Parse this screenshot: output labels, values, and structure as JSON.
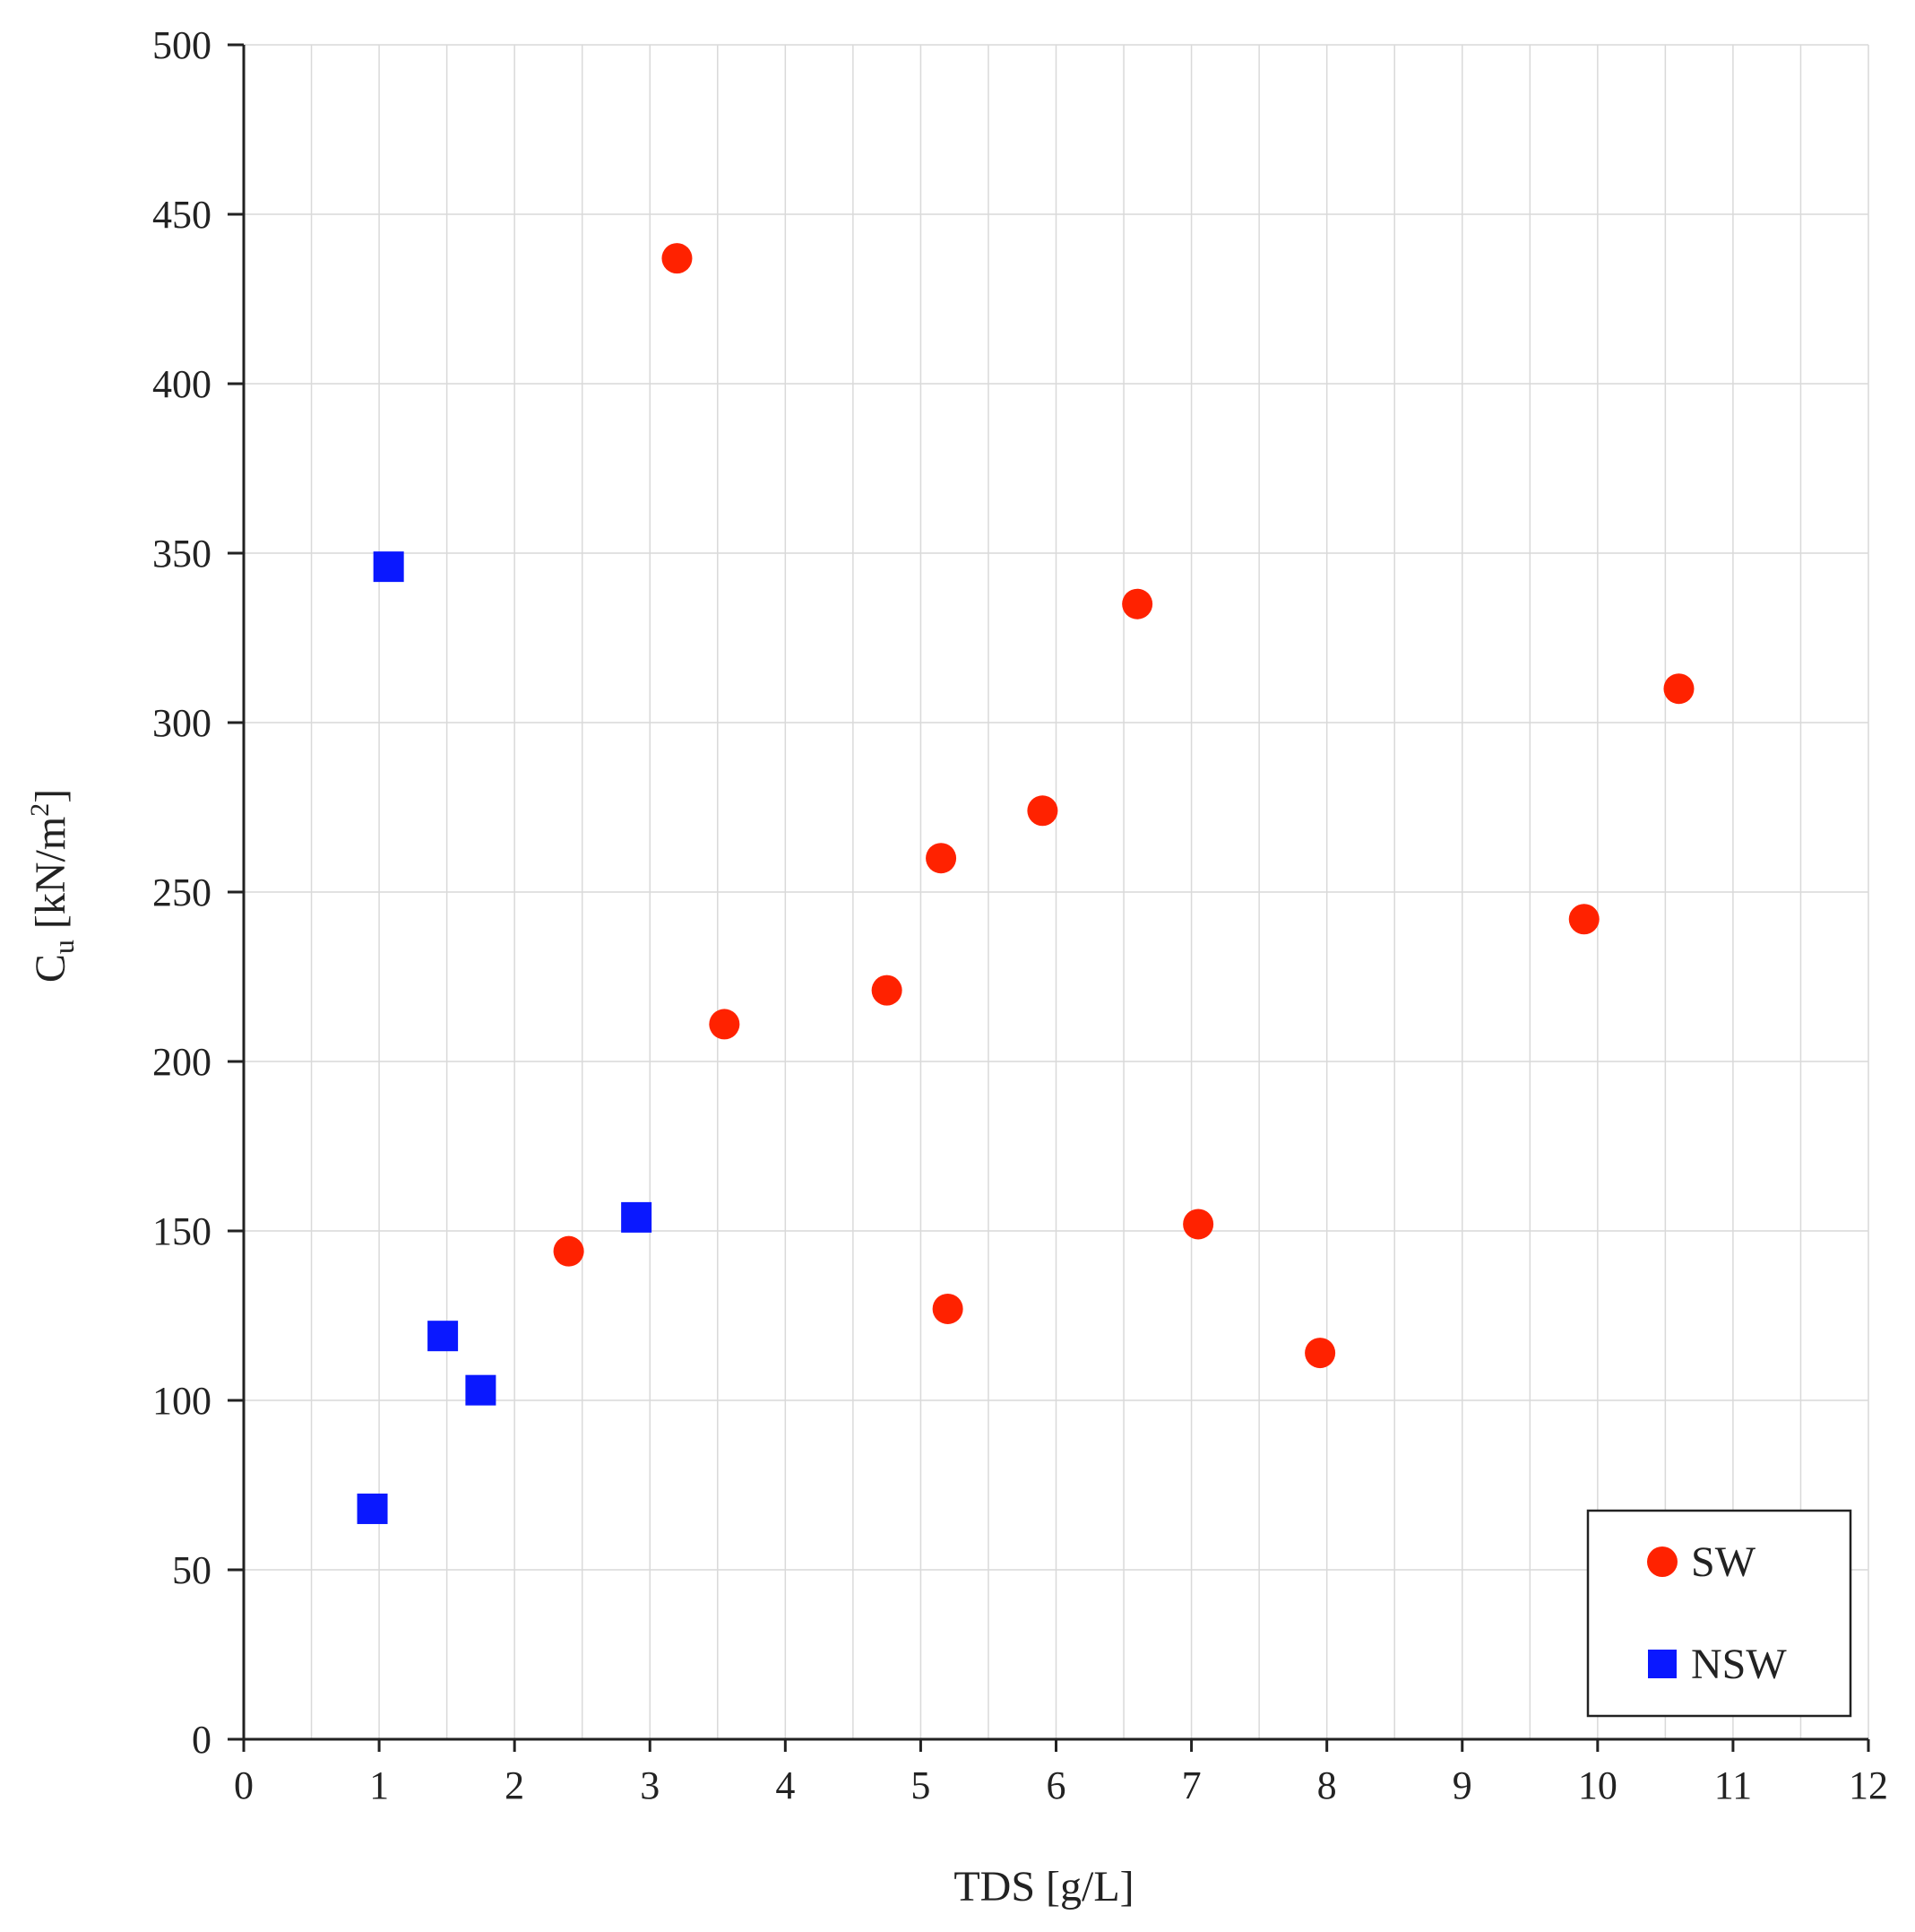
{
  "chart_data": {
    "type": "scatter",
    "title": "",
    "xlabel": "TDS [g/L]",
    "ylabel": {
      "main": "C",
      "subscript": "u",
      "unit_prefix": " [kN/m",
      "superscript": "2",
      "unit_suffix": "]"
    },
    "xlim": [
      0,
      12
    ],
    "ylim": [
      0,
      500
    ],
    "x_ticks": [
      0,
      1,
      2,
      3,
      4,
      5,
      6,
      7,
      8,
      9,
      10,
      11,
      12
    ],
    "y_ticks": [
      0,
      50,
      100,
      150,
      200,
      250,
      300,
      350,
      400,
      450,
      500
    ],
    "grid": true,
    "legend_position": "bottom-right",
    "series": [
      {
        "name": "SW",
        "marker": "circle",
        "color": "#ff2200",
        "points": [
          {
            "x": 3.2,
            "y": 437
          },
          {
            "x": 6.6,
            "y": 335
          },
          {
            "x": 10.6,
            "y": 310
          },
          {
            "x": 5.9,
            "y": 274
          },
          {
            "x": 5.15,
            "y": 260
          },
          {
            "x": 9.9,
            "y": 242
          },
          {
            "x": 4.75,
            "y": 221
          },
          {
            "x": 3.55,
            "y": 211
          },
          {
            "x": 7.05,
            "y": 152
          },
          {
            "x": 2.4,
            "y": 144
          },
          {
            "x": 5.2,
            "y": 127
          },
          {
            "x": 7.95,
            "y": 114
          }
        ]
      },
      {
        "name": "NSW",
        "marker": "square",
        "color": "#0a18ff",
        "points": [
          {
            "x": 1.07,
            "y": 346
          },
          {
            "x": 2.9,
            "y": 154
          },
          {
            "x": 1.47,
            "y": 119
          },
          {
            "x": 1.75,
            "y": 103
          },
          {
            "x": 0.95,
            "y": 68
          }
        ]
      }
    ]
  },
  "colors": {
    "axis": "#222222",
    "grid": "#d9d9d9",
    "background": "#ffffff"
  }
}
